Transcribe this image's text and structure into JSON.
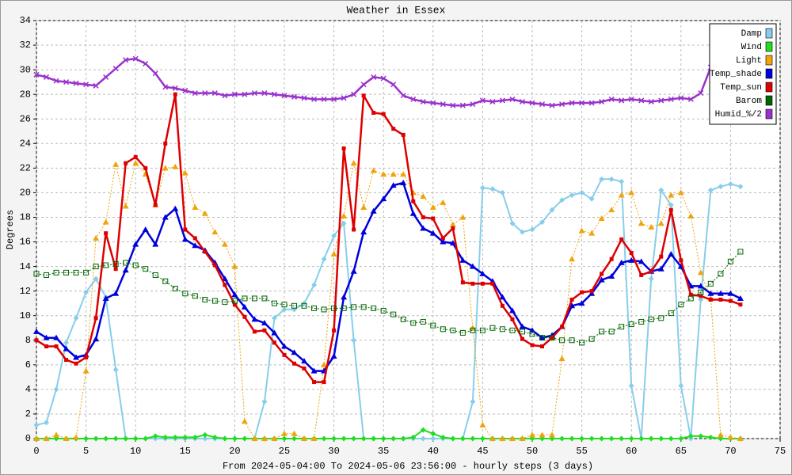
{
  "chart_data": {
    "type": "line",
    "title": "Weather in Essex",
    "x_label": "From 2024-05-04:00 To 2024-05-06 23:56:00 - hourly steps (3 days)",
    "y_label": "Degrees",
    "xlim": [
      0,
      75
    ],
    "xticks": [
      0,
      5,
      10,
      15,
      20,
      25,
      30,
      35,
      40,
      45,
      50,
      55,
      60,
      65,
      70,
      75
    ],
    "ylim": [
      0,
      34
    ],
    "yticks": [
      0,
      2,
      4,
      6,
      8,
      10,
      12,
      14,
      16,
      18,
      20,
      22,
      24,
      26,
      28,
      30,
      32,
      34
    ],
    "grid": true,
    "legend": "top-right",
    "x": [
      0,
      1,
      2,
      3,
      4,
      5,
      6,
      7,
      8,
      9,
      10,
      11,
      12,
      13,
      14,
      15,
      16,
      17,
      18,
      19,
      20,
      21,
      22,
      23,
      24,
      25,
      26,
      27,
      28,
      29,
      30,
      31,
      32,
      33,
      34,
      35,
      36,
      37,
      38,
      39,
      40,
      41,
      42,
      43,
      44,
      45,
      46,
      47,
      48,
      49,
      50,
      51,
      52,
      53,
      54,
      55,
      56,
      57,
      58,
      59,
      60,
      61,
      62,
      63,
      64,
      65,
      66,
      67,
      68,
      69,
      70,
      71
    ],
    "series": [
      {
        "name": "Damp",
        "color": "#87ceeb",
        "marker": "diamond",
        "dash": false,
        "width": 2,
        "values": [
          1.1,
          1.3,
          4,
          7.8,
          9.8,
          11.9,
          13,
          11.5,
          5.6,
          0,
          0,
          0,
          0,
          0,
          0,
          0,
          0,
          0,
          0,
          0,
          0,
          0,
          0,
          3,
          9.8,
          10.5,
          10.5,
          11,
          12.5,
          14.6,
          16.5,
          17.5,
          8,
          0,
          0,
          0,
          0,
          0,
          0,
          0,
          0,
          0,
          0,
          0,
          3,
          20.4,
          20.3,
          20,
          17.5,
          16.8,
          17,
          17.6,
          18.6,
          19.4,
          19.8,
          20,
          19.5,
          21.1,
          21.1,
          20.9,
          4.3,
          0,
          13,
          20.2,
          19,
          4.3,
          0,
          11.3,
          20.2,
          20.5,
          20.7,
          20.5
        ]
      },
      {
        "name": "Wind",
        "color": "#22dd22",
        "marker": "diamond",
        "dash": false,
        "width": 2,
        "values": [
          0,
          0,
          0,
          0,
          0,
          0,
          0,
          0,
          0,
          0,
          0,
          0,
          0.2,
          0.1,
          0.1,
          0.1,
          0.1,
          0.3,
          0.1,
          0,
          0,
          0,
          0,
          0,
          0,
          0,
          0,
          0,
          0,
          0,
          0,
          0,
          0,
          0,
          0,
          0,
          0,
          0,
          0.1,
          0.7,
          0.4,
          0.1,
          0,
          0,
          0,
          0,
          0,
          0,
          0,
          0,
          0,
          0,
          0,
          0,
          0,
          0,
          0,
          0,
          0,
          0,
          0,
          0,
          0,
          0,
          0,
          0,
          0.2,
          0.2,
          0.1,
          0,
          0,
          0
        ]
      },
      {
        "name": "Light",
        "color": "#f0a30a",
        "marker": "triangle",
        "dash": true,
        "width": 1,
        "values": [
          0,
          0,
          0.3,
          0,
          0.1,
          5.5,
          16.3,
          17.6,
          22.3,
          18.9,
          22.4,
          21.5,
          19,
          22,
          22.1,
          21.6,
          18.8,
          18.3,
          16.8,
          15.8,
          14,
          1.4,
          0,
          0,
          0,
          0.4,
          0.4,
          0,
          0,
          6,
          15,
          18.1,
          22.4,
          18.8,
          21.8,
          21.5,
          21.5,
          21.5,
          20,
          19.7,
          18.8,
          19.2,
          17.4,
          18,
          9,
          1.1,
          0,
          0,
          0,
          0,
          0.3,
          0.3,
          0.3,
          6.5,
          14.6,
          16.9,
          16.7,
          17.9,
          18.6,
          19.8,
          20,
          17.5,
          17.2,
          17.5,
          19.8,
          20,
          18.1,
          13.5,
          11.4,
          0.3,
          0.1,
          0
        ]
      },
      {
        "name": "Temp_shade",
        "color": "#0000dd",
        "marker": "triangle",
        "dash": false,
        "width": 2.5,
        "values": [
          8.7,
          8.2,
          8.2,
          7.3,
          6.6,
          6.8,
          8.1,
          11.4,
          11.8,
          13.7,
          15.8,
          17,
          15.8,
          18,
          18.7,
          16.2,
          15.7,
          15.3,
          14.3,
          13,
          11.7,
          10.7,
          9.7,
          9.4,
          8.6,
          7.5,
          7,
          6.3,
          5.5,
          5.5,
          6.7,
          11.5,
          13.6,
          16.8,
          18.5,
          19.5,
          20.6,
          20.8,
          18.3,
          17.1,
          16.7,
          16,
          15.9,
          14.5,
          14,
          13.4,
          12.8,
          11.5,
          10.4,
          9.1,
          8.8,
          8.2,
          8.4,
          9.1,
          10.8,
          11,
          11.8,
          12.9,
          13.2,
          14.3,
          14.5,
          14.4,
          13.6,
          13.8,
          15,
          14,
          12.4,
          12.4,
          11.8,
          11.8,
          11.8,
          11.4
        ]
      },
      {
        "name": "Temp_sun",
        "color": "#dd0000",
        "marker": "square",
        "dash": false,
        "width": 2.5,
        "values": [
          8,
          7.5,
          7.5,
          6.4,
          6.1,
          6.6,
          9.8,
          16.7,
          13.8,
          22.4,
          22.9,
          22,
          19,
          24,
          28,
          17,
          16.3,
          15.2,
          14.1,
          12.5,
          10.9,
          9.9,
          8.7,
          8.8,
          7.8,
          6.8,
          6.1,
          5.7,
          4.6,
          4.6,
          8.8,
          23.6,
          17,
          27.9,
          26.5,
          26.4,
          25.2,
          24.7,
          19.3,
          18,
          17.9,
          16.3,
          17.1,
          12.7,
          12.6,
          12.6,
          12.6,
          10.8,
          9.7,
          8.1,
          7.6,
          7.5,
          8.2,
          9.1,
          11.3,
          11.9,
          12,
          13.4,
          14.6,
          16.2,
          15.1,
          13.3,
          13.6,
          14.8,
          18.6,
          14.5,
          11.7,
          11.6,
          11.3,
          11.3,
          11.2,
          10.9
        ]
      },
      {
        "name": "Barom",
        "color": "#006400",
        "marker": "open-square",
        "dash": true,
        "width": 1,
        "values": [
          13.4,
          13.3,
          13.5,
          13.5,
          13.5,
          13.5,
          14,
          14.1,
          14.2,
          14.3,
          14.1,
          13.8,
          13.3,
          12.8,
          12.2,
          11.8,
          11.6,
          11.3,
          11.2,
          11.1,
          11.2,
          11.4,
          11.4,
          11.4,
          11,
          10.9,
          10.8,
          10.8,
          10.6,
          10.5,
          10.6,
          10.6,
          10.7,
          10.7,
          10.6,
          10.4,
          10.1,
          9.7,
          9.4,
          9.5,
          9.2,
          8.9,
          8.8,
          8.6,
          8.8,
          8.8,
          9,
          8.9,
          8.8,
          8.7,
          8.5,
          8.2,
          8.2,
          8,
          8,
          7.8,
          8.1,
          8.7,
          8.7,
          9.1,
          9.3,
          9.5,
          9.7,
          9.8,
          10.2,
          10.9,
          11.4,
          11.9,
          12.6,
          13.4,
          14.4,
          15.2
        ]
      },
      {
        "name": "Humid_%/2",
        "color": "#9932cc",
        "marker": "cross",
        "dash": false,
        "width": 2.5,
        "values": [
          29.6,
          29.4,
          29.1,
          29,
          28.9,
          28.8,
          28.7,
          29.4,
          30.1,
          30.8,
          30.9,
          30.5,
          29.7,
          28.6,
          28.5,
          28.3,
          28.1,
          28.1,
          28.1,
          27.9,
          28,
          28,
          28.1,
          28.1,
          28,
          27.9,
          27.8,
          27.7,
          27.6,
          27.6,
          27.6,
          27.7,
          28,
          28.8,
          29.4,
          29.3,
          28.8,
          27.9,
          27.6,
          27.4,
          27.3,
          27.2,
          27.1,
          27.1,
          27.2,
          27.5,
          27.4,
          27.5,
          27.6,
          27.4,
          27.3,
          27.2,
          27.1,
          27.2,
          27.3,
          27.3,
          27.3,
          27.4,
          27.6,
          27.5,
          27.6,
          27.5,
          27.4,
          27.5,
          27.6,
          27.7,
          27.6,
          28.1,
          30.2,
          null,
          null,
          null
        ]
      }
    ]
  }
}
